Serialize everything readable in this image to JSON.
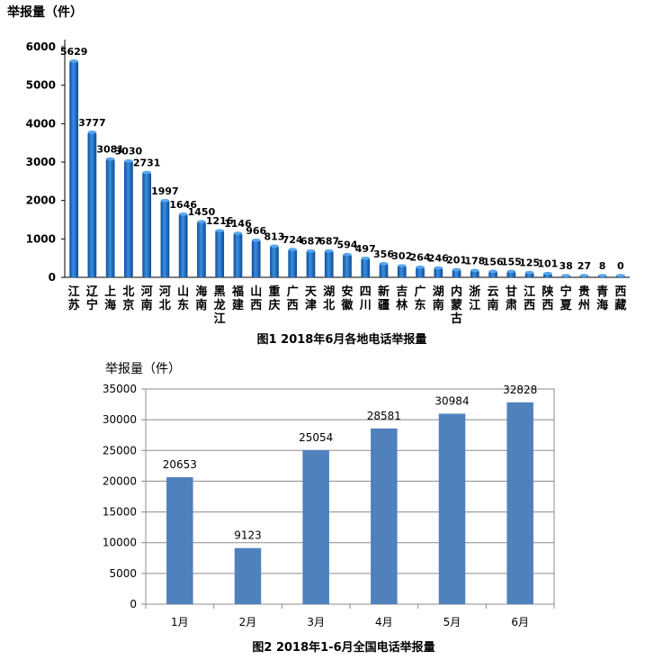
{
  "chart_data": [
    {
      "type": "bar",
      "title": "图1  2018年6月各地电话举报量",
      "ylabel": "举报量（件）",
      "ylim": [
        0,
        6000
      ],
      "yticks": [
        0,
        1000,
        2000,
        3000,
        4000,
        5000,
        6000
      ],
      "grid": false,
      "categories": [
        "江苏",
        "辽宁",
        "上海",
        "北京",
        "河南",
        "河北",
        "山东",
        "海南",
        "黑龙江",
        "福建",
        "山西",
        "重庆",
        "广西",
        "天津",
        "湖北",
        "安徽",
        "四川",
        "新疆",
        "吉林",
        "广东",
        "湖南",
        "内蒙古",
        "浙江",
        "云南",
        "甘肃",
        "江西",
        "陕西",
        "宁夏",
        "贵州",
        "青海",
        "西藏"
      ],
      "values": [
        5629,
        3777,
        3081,
        3030,
        2731,
        1997,
        1646,
        1450,
        1216,
        1146,
        966,
        813,
        724,
        687,
        687,
        594,
        497,
        356,
        302,
        264,
        246,
        201,
        178,
        156,
        155,
        125,
        101,
        38,
        27,
        8,
        0
      ],
      "bar_color": "#1f6fc5"
    },
    {
      "type": "bar",
      "title": "图2  2018年1-6月全国电话举报量",
      "ylabel": "举报量（件）",
      "ylim": [
        0,
        35000
      ],
      "yticks": [
        0,
        5000,
        10000,
        15000,
        20000,
        25000,
        30000,
        35000
      ],
      "grid": true,
      "categories": [
        "1月",
        "2月",
        "3月",
        "4月",
        "5月",
        "6月"
      ],
      "values": [
        20653,
        9123,
        25054,
        28581,
        30984,
        32828
      ],
      "bar_color": "#4f81bd"
    }
  ]
}
